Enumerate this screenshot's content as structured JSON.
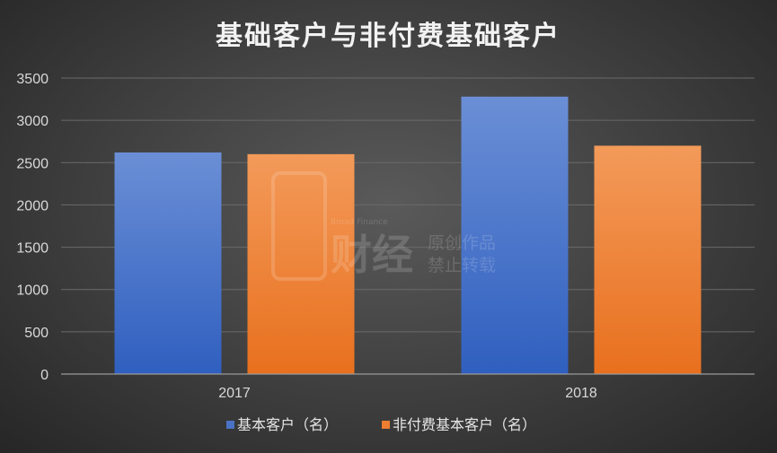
{
  "chart_data": {
    "type": "bar",
    "title": "基础客户与非付费基础客户",
    "categories": [
      "2017",
      "2018"
    ],
    "series": [
      {
        "name": "基本客户（名）",
        "values": [
          2620,
          3280
        ],
        "color": "#4a72c4"
      },
      {
        "name": "非付费基本客户（名）",
        "values": [
          2600,
          2700
        ],
        "color": "#ed7d31"
      }
    ],
    "ylim": [
      0,
      3500
    ],
    "yticks": [
      0,
      500,
      1000,
      1500,
      2000,
      2500,
      3000,
      3500
    ],
    "grid": true,
    "legend": "bottom",
    "xlabel": "",
    "ylabel": ""
  },
  "watermark": {
    "brand": "Broad Finance",
    "logo_text": "财经",
    "line1": "原创作品",
    "line2": "禁止转载"
  }
}
